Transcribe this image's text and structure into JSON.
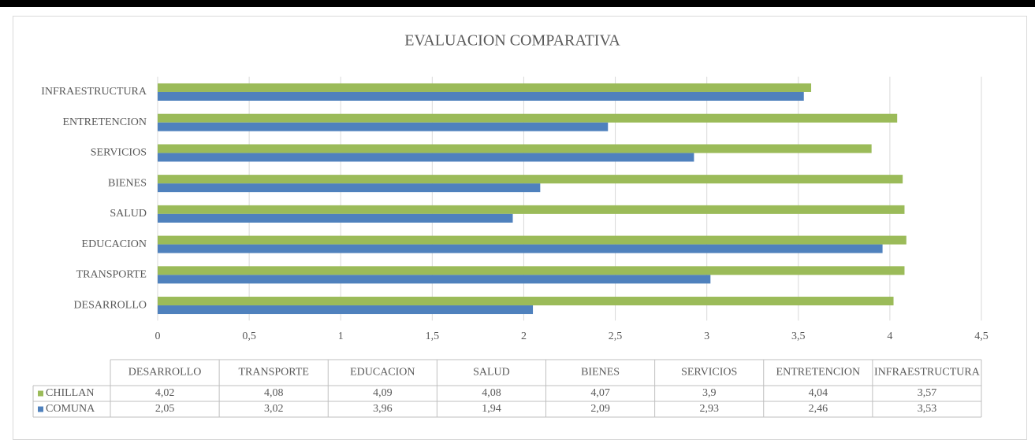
{
  "chart_data": {
    "type": "bar",
    "orientation": "horizontal",
    "title": "EVALUACION COMPARATIVA",
    "categories": [
      "DESARROLLO",
      "TRANSPORTE",
      "EDUCACION",
      "SALUD",
      "BIENES",
      "SERVICIOS",
      "ENTRETENCION",
      "INFRAESTRUCTURA"
    ],
    "series": [
      {
        "name": "CHILLAN",
        "color": "#9bbb59",
        "values": [
          4.02,
          4.08,
          4.09,
          4.08,
          4.07,
          3.9,
          4.04,
          3.57
        ],
        "value_labels": [
          "4,02",
          "4,08",
          "4,09",
          "4,08",
          "4,07",
          "3,9",
          "4,04",
          "3,57"
        ]
      },
      {
        "name": "COMUNA",
        "color": "#4f81bd",
        "values": [
          2.05,
          3.02,
          3.96,
          1.94,
          2.09,
          2.93,
          2.46,
          3.53
        ],
        "value_labels": [
          "2,05",
          "3,02",
          "3,96",
          "1,94",
          "2,09",
          "2,93",
          "2,46",
          "3,53"
        ]
      }
    ],
    "xlim": [
      0,
      4.5
    ],
    "xticks": [
      0,
      {
        "value": 0.5,
        "label": "0,5"
      },
      1,
      {
        "value": 1.5,
        "label": "1,5"
      },
      2,
      {
        "value": 2.5,
        "label": "2,5"
      },
      3,
      {
        "value": 3.5,
        "label": "3,5"
      },
      4,
      {
        "value": 4.5,
        "label": "4,5"
      }
    ],
    "grid": true,
    "data_table": true
  }
}
